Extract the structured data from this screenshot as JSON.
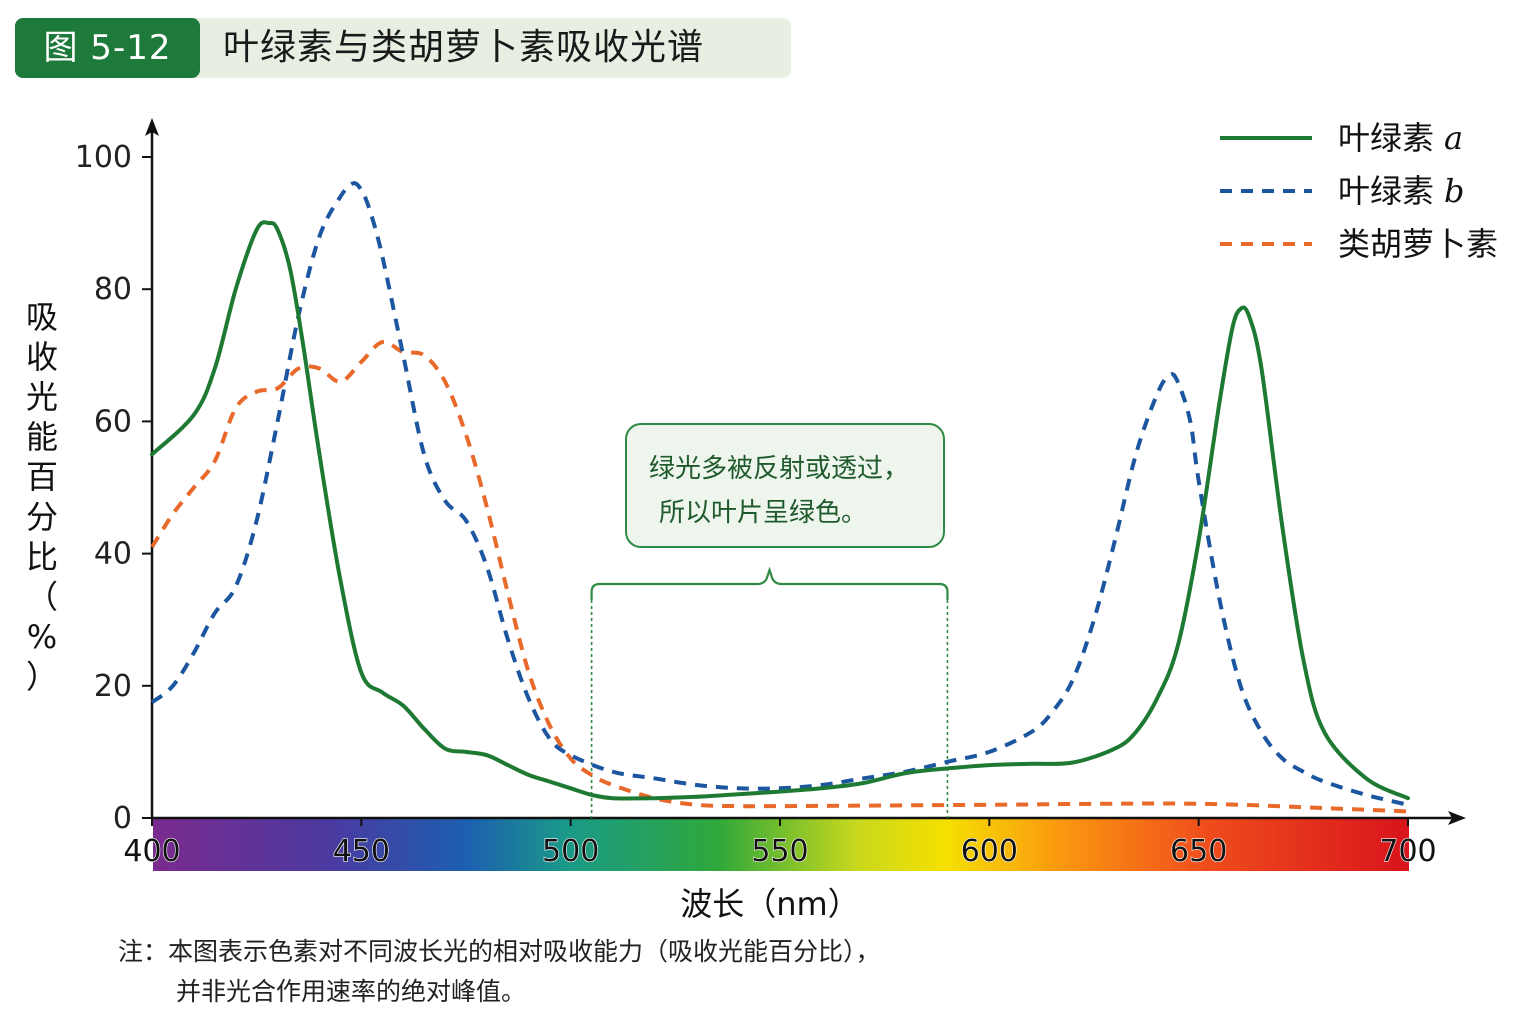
{
  "header": {
    "label": "图 5-12",
    "title": "叶绿素与类胡萝卜素吸收光谱"
  },
  "callout": {
    "line1": "绿光多被反射或透过，",
    "line2": "所以叶片呈绿色。"
  },
  "note": {
    "line1": "注：本图表示色素对不同波长光的相对吸收能力（吸收光能百分比），",
    "line2": "并非光合作用速率的绝对峰值。"
  },
  "colors": {
    "chl_a": "#1e7a32",
    "chl_b": "#1c56a0",
    "carotenoid": "#e8692a",
    "header_bg": "#e6efe2",
    "header_label": "#1e7a3a"
  },
  "chart_data": {
    "type": "line",
    "xlabel": "波长（nm）",
    "ylabel": "吸收光能百分比（%）",
    "xlim": [
      400,
      700
    ],
    "ylim": [
      0,
      100
    ],
    "xticks": [
      400,
      450,
      500,
      550,
      600,
      650,
      700
    ],
    "yticks": [
      0,
      20,
      40,
      60,
      80,
      100
    ],
    "spectrum_bar": true,
    "legend_position": "top-right",
    "green_region": [
      505,
      590
    ],
    "series": [
      {
        "name": "叶绿素 a",
        "style": "solid",
        "color": "#1e7a32",
        "x": [
          400,
          410,
          415,
          420,
          425,
          428,
          430,
          433,
          436,
          440,
          445,
          450,
          455,
          460,
          465,
          470,
          475,
          480,
          485,
          490,
          495,
          500,
          505,
          510,
          520,
          530,
          540,
          550,
          560,
          570,
          580,
          590,
          600,
          610,
          620,
          630,
          635,
          640,
          645,
          650,
          655,
          658,
          660,
          662,
          665,
          670,
          675,
          680,
          690,
          700
        ],
        "y": [
          55,
          61,
          68,
          80,
          89,
          90,
          89,
          83,
          72,
          55,
          36,
          22,
          19,
          17,
          13.5,
          10.5,
          10,
          9.5,
          8,
          6.5,
          5.5,
          4.5,
          3.5,
          3,
          3,
          3.2,
          3.6,
          4,
          4.5,
          5.3,
          6.8,
          7.5,
          8,
          8.2,
          8.4,
          10.5,
          13,
          18,
          26,
          42,
          63,
          74,
          77,
          76,
          68,
          44,
          24,
          13,
          6,
          3
        ]
      },
      {
        "name": "叶绿素 b",
        "style": "dashed",
        "color": "#1c56a0",
        "x": [
          400,
          405,
          410,
          415,
          420,
          425,
          430,
          435,
          440,
          445,
          448,
          450,
          452,
          455,
          460,
          465,
          470,
          475,
          480,
          485,
          490,
          495,
          500,
          510,
          520,
          530,
          540,
          550,
          560,
          570,
          580,
          590,
          600,
          610,
          615,
          620,
          625,
          630,
          635,
          640,
          643,
          645,
          648,
          650,
          655,
          660,
          665,
          670,
          675,
          680,
          690,
          700
        ],
        "y": [
          17.5,
          20,
          25,
          31,
          35,
          45,
          60,
          76,
          88,
          94,
          96,
          95,
          92,
          85,
          70,
          55,
          48,
          45,
          38,
          27,
          18,
          12,
          9.5,
          7,
          6,
          5,
          4.5,
          4.5,
          5,
          6,
          7,
          8.5,
          10,
          13,
          16,
          21,
          30,
          42,
          55,
          64,
          67,
          66,
          60,
          51,
          33,
          20,
          13,
          9,
          7,
          5.5,
          3.5,
          2
        ]
      },
      {
        "name": "类胡萝卜素",
        "style": "dashed",
        "color": "#e8692a",
        "x": [
          400,
          405,
          410,
          415,
          420,
          425,
          430,
          435,
          440,
          445,
          450,
          455,
          460,
          465,
          470,
          475,
          480,
          485,
          490,
          495,
          500,
          505,
          510,
          520,
          530,
          540,
          550,
          600,
          640,
          660,
          680,
          700
        ],
        "y": [
          41,
          46,
          50,
          54,
          62,
          64.5,
          65,
          68,
          68,
          66,
          69,
          72,
          70.5,
          70,
          66,
          58,
          47,
          34,
          22,
          14,
          9,
          6.5,
          5,
          3,
          2,
          1.8,
          1.8,
          2,
          2.2,
          2,
          1.5,
          1
        ]
      }
    ]
  }
}
